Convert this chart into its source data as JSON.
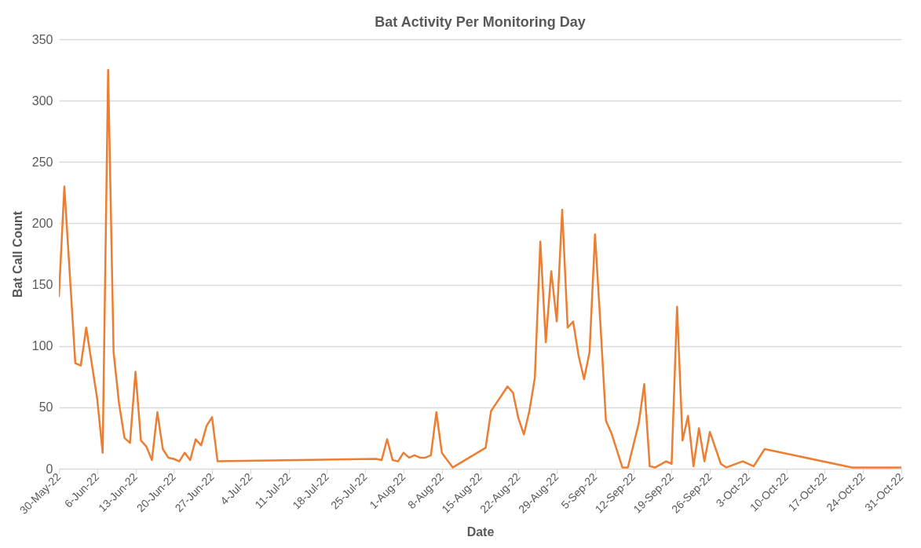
{
  "chart_data": {
    "type": "line",
    "title": "Bat Activity  Per Monitoring  Day",
    "xlabel": "Date",
    "ylabel": "Bat Call Count",
    "x": [
      "--05-30",
      "--05-31",
      "--06-02",
      "--06-03",
      "--06-04",
      "--06-06",
      "--06-07",
      "--06-08",
      "--06-09",
      "--06-10",
      "--06-11",
      "--06-12",
      "--06-13",
      "--06-14",
      "--06-15",
      "--06-16",
      "--06-17",
      "--06-18",
      "--06-19",
      "--06-20",
      "--06-21",
      "--06-22",
      "--06-23",
      "--06-24",
      "--06-25",
      "--06-26",
      "--06-27",
      "--06-28",
      "--07-27",
      "--07-28",
      "--07-29",
      "--07-30",
      "--07-31",
      "--08-01",
      "--08-02",
      "--08-03",
      "--08-04",
      "--08-05",
      "--08-06",
      "--08-07",
      "--08-08",
      "--08-10",
      "--08-16",
      "--08-17",
      "--08-20",
      "--08-21",
      "--08-22",
      "--08-23",
      "--08-24",
      "--08-25",
      "--08-26",
      "--08-27",
      "--08-28",
      "--08-29",
      "--08-30",
      "--08-31",
      "--09-01",
      "--09-02",
      "--09-03",
      "--09-04",
      "--09-05",
      "--09-06",
      "--09-07",
      "--09-08",
      "--09-10",
      "--09-11",
      "--09-13",
      "--09-14",
      "--09-15",
      "--09-16",
      "--09-18",
      "--09-19",
      "--09-20",
      "--09-21",
      "--09-22",
      "--09-23",
      "--09-24",
      "--09-25",
      "--09-26",
      "--09-28",
      "--09-29",
      "--10-02",
      "--10-04",
      "--10-06",
      "--10-22",
      "--10-31"
    ],
    "series": [
      {
        "color": "#ed7d31",
        "values": [
          140,
          230,
          86,
          84,
          115,
          57,
          13,
          325,
          95,
          53,
          25,
          21,
          79,
          23,
          18,
          7,
          46,
          16,
          9,
          8,
          6,
          13,
          7,
          24,
          19,
          35,
          42,
          6,
          8,
          7,
          24,
          7,
          6,
          13,
          9,
          11,
          9,
          9,
          11,
          46,
          13,
          1,
          17,
          47,
          67,
          62,
          41,
          28,
          47,
          74,
          185,
          103,
          161,
          120,
          211,
          115,
          120,
          92,
          73,
          95,
          191,
          117,
          39,
          29,
          1,
          1,
          37,
          69,
          2,
          1,
          6,
          4,
          132,
          23,
          43,
          2,
          33,
          6,
          30,
          4,
          1,
          6,
          2,
          16,
          1,
          1
        ]
      }
    ],
    "xlim": [
      "--05-30",
      "--10-31"
    ],
    "xticks": [
      {
        "value": "--05-30",
        "label": "30-May-22"
      },
      {
        "value": "--06-06",
        "label": "6-Jun-22"
      },
      {
        "value": "--06-13",
        "label": "13-Jun-22"
      },
      {
        "value": "--06-20",
        "label": "20-Jun-22"
      },
      {
        "value": "--06-27",
        "label": "27-Jun-22"
      },
      {
        "value": "--07-04",
        "label": "4-Jul-22"
      },
      {
        "value": "--07-11",
        "label": "11-Jul-22"
      },
      {
        "value": "--07-18",
        "label": "18-Jul-22"
      },
      {
        "value": "--07-25",
        "label": "25-Jul-22"
      },
      {
        "value": "--08-01",
        "label": "1-Aug-22"
      },
      {
        "value": "--08-08",
        "label": "8-Aug-22"
      },
      {
        "value": "--08-15",
        "label": "15-Aug-22"
      },
      {
        "value": "--08-22",
        "label": "22-Aug-22"
      },
      {
        "value": "--08-29",
        "label": "29-Aug-22"
      },
      {
        "value": "--09-05",
        "label": "5-Sep-22"
      },
      {
        "value": "--09-12",
        "label": "12-Sep-22"
      },
      {
        "value": "--09-19",
        "label": "19-Sep-22"
      },
      {
        "value": "--09-26",
        "label": "26-Sep-22"
      },
      {
        "value": "--10-03",
        "label": "3-Oct-22"
      },
      {
        "value": "--10-10",
        "label": "10-Oct-22"
      },
      {
        "value": "--10-17",
        "label": "17-Oct-22"
      },
      {
        "value": "--10-24",
        "label": "24-Oct-22"
      },
      {
        "value": "--10-31",
        "label": "31-Oct-22"
      }
    ],
    "ylim": [
      0,
      350
    ],
    "yticks": [
      0,
      50,
      100,
      150,
      200,
      250,
      300,
      350
    ],
    "grid": "y",
    "marker": "none",
    "line_style": "solid"
  }
}
